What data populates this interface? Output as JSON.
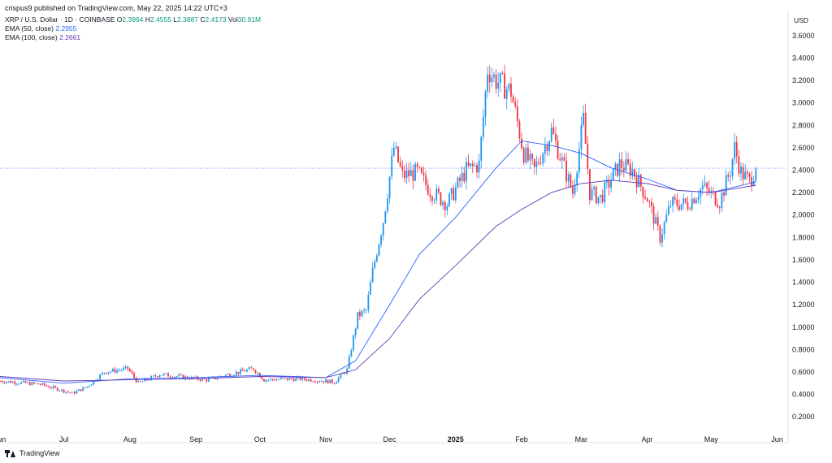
{
  "header": {
    "published": "crispus9 published on TradingView.com, May 22, 2025 14:22 UTC+3"
  },
  "legend": {
    "symbol": "XRP / U.S. Dollar · 1D · COINBASE",
    "o_label": "O",
    "o_value": "2.3964",
    "h_label": "H",
    "h_value": "2.4555",
    "l_label": "L",
    "l_value": "2.3887",
    "c_label": "C",
    "c_value": "2.4173",
    "vol_label": "Vol",
    "vol_value": "30.91M",
    "ema50_label": "EMA (50, close)",
    "ema50_value": "2.2955",
    "ema100_label": "EMA (100, close)",
    "ema100_value": "2.2661"
  },
  "axis": {
    "currency": "USD"
  },
  "footer": {
    "logo_text": "TradingView"
  },
  "colors": {
    "up": "#089981",
    "up_body": "#2196f3",
    "down": "#f23645",
    "ema50": "#2962ff",
    "ema100": "#673ab7",
    "grid": "#e0e3eb"
  },
  "chart_data": {
    "type": "candlestick",
    "title": "XRP / U.S. Dollar · 1D · COINBASE",
    "ylim": [
      0.1,
      3.7
    ],
    "y_ticks": [
      0.2,
      0.4,
      0.6,
      0.8,
      1.0,
      1.2,
      1.4,
      1.6,
      1.8,
      2.0,
      2.2,
      2.4,
      2.6,
      2.8,
      3.0,
      3.2,
      3.4,
      3.6
    ],
    "y_tick_labels": [
      "0.2000",
      "0.4000",
      "0.6000",
      "0.8000",
      "1.0000",
      "1.2000",
      "1.4000",
      "1.6000",
      "1.8000",
      "2.0000",
      "2.2000",
      "2.4000",
      "2.6000",
      "2.8000",
      "3.0000",
      "3.2000",
      "3.4000",
      "3.6000"
    ],
    "x_range": [
      "2024-06-01",
      "2025-06-05"
    ],
    "x_ticks": [
      {
        "date": "2024-06-01",
        "label": "Jun"
      },
      {
        "date": "2024-07-01",
        "label": "Jul"
      },
      {
        "date": "2024-08-01",
        "label": "Aug"
      },
      {
        "date": "2024-09-01",
        "label": "Sep"
      },
      {
        "date": "2024-10-01",
        "label": "Oct"
      },
      {
        "date": "2024-11-01",
        "label": "Nov"
      },
      {
        "date": "2024-12-01",
        "label": "Dec"
      },
      {
        "date": "2025-01-01",
        "label": "2025",
        "bold": true
      },
      {
        "date": "2025-02-01",
        "label": "Feb"
      },
      {
        "date": "2025-03-01",
        "label": "Mar"
      },
      {
        "date": "2025-04-01",
        "label": "Apr"
      },
      {
        "date": "2025-05-01",
        "label": "May"
      },
      {
        "date": "2025-06-01",
        "label": "Jun"
      }
    ],
    "last_close": 2.4173,
    "candles_start": "2024-06-01",
    "close_points": [
      {
        "date": "2024-06-01",
        "value": 0.52
      },
      {
        "date": "2024-06-20",
        "value": 0.49
      },
      {
        "date": "2024-07-05",
        "value": 0.41
      },
      {
        "date": "2024-07-12",
        "value": 0.47
      },
      {
        "date": "2024-07-20",
        "value": 0.6
      },
      {
        "date": "2024-07-31",
        "value": 0.63
      },
      {
        "date": "2024-08-05",
        "value": 0.5
      },
      {
        "date": "2024-08-15",
        "value": 0.58
      },
      {
        "date": "2024-09-06",
        "value": 0.53
      },
      {
        "date": "2024-09-28",
        "value": 0.63
      },
      {
        "date": "2024-10-03",
        "value": 0.53
      },
      {
        "date": "2024-10-20",
        "value": 0.54
      },
      {
        "date": "2024-11-05",
        "value": 0.51
      },
      {
        "date": "2024-11-11",
        "value": 0.62
      },
      {
        "date": "2024-11-16",
        "value": 1.1
      },
      {
        "date": "2024-11-20",
        "value": 1.15
      },
      {
        "date": "2024-11-23",
        "value": 1.5
      },
      {
        "date": "2024-11-28",
        "value": 1.95
      },
      {
        "date": "2024-12-03",
        "value": 2.6
      },
      {
        "date": "2024-12-07",
        "value": 2.35
      },
      {
        "date": "2024-12-14",
        "value": 2.38
      },
      {
        "date": "2024-12-20",
        "value": 2.22
      },
      {
        "date": "2024-12-28",
        "value": 2.1
      },
      {
        "date": "2025-01-06",
        "value": 2.4
      },
      {
        "date": "2025-01-12",
        "value": 2.45
      },
      {
        "date": "2025-01-16",
        "value": 3.3
      },
      {
        "date": "2025-01-20",
        "value": 3.2
      },
      {
        "date": "2025-01-27",
        "value": 3.1
      },
      {
        "date": "2025-02-02",
        "value": 2.55
      },
      {
        "date": "2025-02-07",
        "value": 2.4
      },
      {
        "date": "2025-02-15",
        "value": 2.75
      },
      {
        "date": "2025-02-25",
        "value": 2.2
      },
      {
        "date": "2025-03-02",
        "value": 2.85
      },
      {
        "date": "2025-03-05",
        "value": 2.2
      },
      {
        "date": "2025-03-10",
        "value": 2.15
      },
      {
        "date": "2025-03-19",
        "value": 2.45
      },
      {
        "date": "2025-03-25",
        "value": 2.4
      },
      {
        "date": "2025-04-01",
        "value": 2.15
      },
      {
        "date": "2025-04-07",
        "value": 1.8
      },
      {
        "date": "2025-04-12",
        "value": 2.1
      },
      {
        "date": "2025-04-20",
        "value": 2.1
      },
      {
        "date": "2025-04-27",
        "value": 2.25
      },
      {
        "date": "2025-05-05",
        "value": 2.12
      },
      {
        "date": "2025-05-10",
        "value": 2.4
      },
      {
        "date": "2025-05-12",
        "value": 2.6
      },
      {
        "date": "2025-05-15",
        "value": 2.38
      },
      {
        "date": "2025-05-19",
        "value": 2.3
      },
      {
        "date": "2025-05-22",
        "value": 2.42
      }
    ],
    "ema50_points": [
      {
        "date": "2024-06-01",
        "value": 0.55
      },
      {
        "date": "2024-07-01",
        "value": 0.5
      },
      {
        "date": "2024-08-01",
        "value": 0.54
      },
      {
        "date": "2024-09-01",
        "value": 0.55
      },
      {
        "date": "2024-10-01",
        "value": 0.57
      },
      {
        "date": "2024-11-01",
        "value": 0.55
      },
      {
        "date": "2024-11-15",
        "value": 0.7
      },
      {
        "date": "2024-12-01",
        "value": 1.2
      },
      {
        "date": "2024-12-15",
        "value": 1.65
      },
      {
        "date": "2025-01-01",
        "value": 1.98
      },
      {
        "date": "2025-01-20",
        "value": 2.42
      },
      {
        "date": "2025-02-01",
        "value": 2.66
      },
      {
        "date": "2025-02-15",
        "value": 2.62
      },
      {
        "date": "2025-03-01",
        "value": 2.55
      },
      {
        "date": "2025-03-15",
        "value": 2.42
      },
      {
        "date": "2025-04-01",
        "value": 2.32
      },
      {
        "date": "2025-04-15",
        "value": 2.22
      },
      {
        "date": "2025-05-01",
        "value": 2.2
      },
      {
        "date": "2025-05-22",
        "value": 2.2955
      }
    ],
    "ema100_points": [
      {
        "date": "2024-06-01",
        "value": 0.56
      },
      {
        "date": "2024-07-01",
        "value": 0.52
      },
      {
        "date": "2024-08-01",
        "value": 0.53
      },
      {
        "date": "2024-09-01",
        "value": 0.54
      },
      {
        "date": "2024-10-01",
        "value": 0.56
      },
      {
        "date": "2024-11-01",
        "value": 0.55
      },
      {
        "date": "2024-11-15",
        "value": 0.62
      },
      {
        "date": "2024-12-01",
        "value": 0.9
      },
      {
        "date": "2024-12-15",
        "value": 1.25
      },
      {
        "date": "2025-01-01",
        "value": 1.55
      },
      {
        "date": "2025-01-20",
        "value": 1.9
      },
      {
        "date": "2025-02-01",
        "value": 2.05
      },
      {
        "date": "2025-02-15",
        "value": 2.2
      },
      {
        "date": "2025-03-01",
        "value": 2.28
      },
      {
        "date": "2025-03-15",
        "value": 2.31
      },
      {
        "date": "2025-04-01",
        "value": 2.28
      },
      {
        "date": "2025-04-15",
        "value": 2.22
      },
      {
        "date": "2025-05-01",
        "value": 2.2
      },
      {
        "date": "2025-05-22",
        "value": 2.2661
      }
    ]
  }
}
